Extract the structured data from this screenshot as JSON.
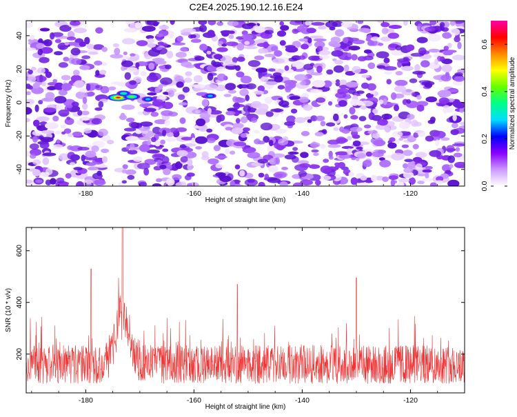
{
  "title": "C2E4.2025.190.12.16.E24",
  "chart_data": [
    {
      "type": "heatmap",
      "xlabel": "Height of straight line (km)",
      "ylabel": "Frequency (Hz)",
      "xlim": [
        -191,
        -110
      ],
      "ylim": [
        -50,
        49
      ],
      "xticks": [
        -180,
        -160,
        -140,
        -120
      ],
      "yticks": [
        -40,
        -20,
        0,
        20,
        40
      ],
      "colorbar": {
        "label": "Normalized spectral amplitude",
        "range": [
          0,
          0.7
        ],
        "ticks": [
          0.0,
          0.2,
          0.4,
          0.6
        ],
        "tick_labels": [
          "0.0",
          "0.2",
          "0.4",
          "0.6"
        ],
        "colors": [
          "#ffffff",
          "#cc99ff",
          "#8800ff",
          "#0000ff",
          "#00ddff",
          "#00ff88",
          "#66ff00",
          "#ffff00",
          "#ff8800",
          "#ff0000",
          "#ff00aa"
        ]
      },
      "hotspots": [
        {
          "x": -174.0,
          "y": 3.0,
          "value": 0.7
        },
        {
          "x": -171.5,
          "y": 3.5,
          "value": 0.45
        },
        {
          "x": -173.0,
          "y": 5.5,
          "value": 0.3
        },
        {
          "x": -168.5,
          "y": 2.0,
          "value": 0.22
        },
        {
          "x": -157.0,
          "y": 4.0,
          "value": 0.2
        }
      ],
      "background_amplitude_range": [
        0.0,
        0.12
      ],
      "quiet_band_x": [
        -177,
        -173
      ]
    },
    {
      "type": "line",
      "xlabel": "Height of straight line (km)",
      "ylabel": "SNR (10 * v/v)",
      "xlim": [
        -191,
        -110
      ],
      "ylim": [
        50,
        690
      ],
      "xticks": [
        -180,
        -160,
        -140,
        -120
      ],
      "yticks": [
        200,
        400,
        600
      ],
      "color": "#ee3333",
      "baseline_mean": 160,
      "peak": {
        "x": -173.2,
        "y": 690
      },
      "notable_spikes": [
        {
          "x": -179.0,
          "y": 530
        },
        {
          "x": -130.0,
          "y": 495
        },
        {
          "x": -152.0,
          "y": 470
        }
      ]
    }
  ]
}
